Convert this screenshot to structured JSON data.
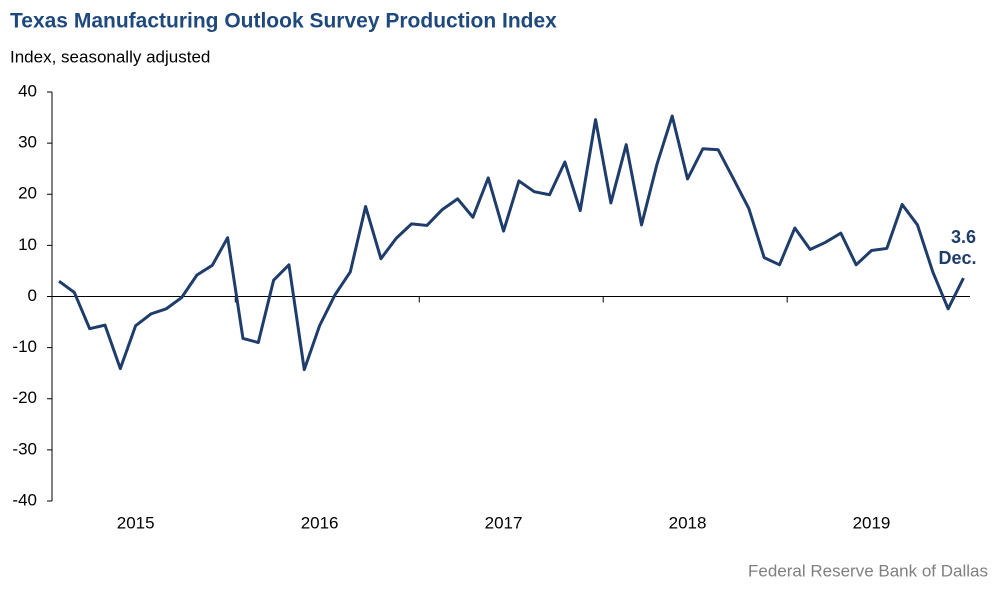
{
  "chart_data": {
    "type": "line",
    "title": "Texas Manufacturing Outlook Survey Production Index",
    "subtitle": "Index, seasonally adjusted",
    "source": "Federal Reserve Bank of Dallas",
    "annotation": "Dec.",
    "categories": [
      null,
      null,
      null,
      null,
      null,
      "2015",
      null,
      null,
      null,
      null,
      null,
      null,
      null,
      null,
      null,
      null,
      null,
      "2016",
      null,
      null,
      null,
      null,
      null,
      null,
      null,
      null,
      null,
      null,
      null,
      "2017",
      null,
      null,
      null,
      null,
      null,
      null,
      null,
      null,
      null,
      null,
      null,
      "2018",
      null,
      null,
      null,
      null,
      null,
      null,
      null,
      null,
      null,
      null,
      null,
      "2019",
      null,
      null,
      null,
      null,
      null,
      null
    ],
    "series": [
      {
        "name": "Production Index",
        "color": "#1f3d6b",
        "values": [
          3,
          0.8,
          -6.3,
          -5.6,
          -14.1,
          -5.7,
          -3.4,
          -2.4,
          -0.2,
          4.2,
          6.1,
          11.5,
          -8.2,
          -9,
          3.2,
          6.2,
          -14.3,
          -5.7,
          0.3,
          4.8,
          17.6,
          7.4,
          11.4,
          14.2,
          13.9,
          17,
          19.1,
          15.5,
          23.2,
          12.8,
          22.6,
          20.5,
          19.9,
          26.3,
          16.8,
          34.6,
          18.3,
          29.7,
          14,
          25.8,
          35.3,
          23,
          28.9,
          28.7,
          23,
          17.2,
          7.6,
          6.2,
          13.4,
          9.2,
          10.6,
          12.4,
          6.2,
          9,
          9.4,
          18,
          14,
          4.8,
          -2.4,
          3.6
        ]
      }
    ],
    "ylim": [
      -40,
      40
    ],
    "yticks": [
      -40,
      -30,
      -20,
      -10,
      0,
      10,
      20,
      30,
      40
    ],
    "grid": false
  }
}
